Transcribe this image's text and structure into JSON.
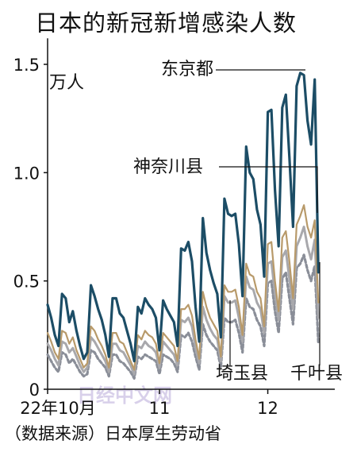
{
  "title": "日本的新冠新增感染人数",
  "source": "（数据来源）日本厚生劳动省",
  "watermark": "日经中文网",
  "colors": {
    "tokyo": "#1c4d66",
    "kanagawa": "#b89a6a",
    "saitama": "#a8a8ac",
    "chiba": "#8a8e98",
    "axis": "#111111",
    "watermark": "#d8d0ea"
  },
  "chart_data": {
    "type": "line",
    "title": "日本的新冠新增感染人数",
    "ylabel": "万人",
    "ylim": [
      0,
      1.62
    ],
    "yticks": [
      0,
      0.5,
      1.0,
      1.5
    ],
    "ytick_labels": [
      "0",
      "0.5",
      "1.0",
      "1.5"
    ],
    "xlim": [
      0,
      74
    ],
    "xticks": [
      {
        "x": 0,
        "label": "22年10月"
      },
      {
        "x": 31,
        "label": "11"
      },
      {
        "x": 61,
        "label": "12"
      }
    ],
    "grid": false,
    "series": [
      {
        "name": "东京都",
        "color_key": "tokyo",
        "style": "solid",
        "width": 3.2,
        "label_pos": [
          0,
          1.47
        ],
        "values": [
          0.39,
          0.33,
          0.25,
          0.2,
          0.44,
          0.42,
          0.31,
          0.36,
          0.27,
          0.2,
          0.14,
          0.17,
          0.48,
          0.43,
          0.37,
          0.32,
          0.25,
          0.15,
          0.42,
          0.42,
          0.35,
          0.33,
          0.27,
          0.21,
          0.13,
          0.38,
          0.35,
          0.42,
          0.39,
          0.37,
          0.33,
          0.18,
          0.41,
          0.37,
          0.34,
          0.31,
          0.2,
          0.65,
          0.64,
          0.68,
          0.59,
          0.38,
          0.22,
          0.79,
          0.63,
          0.55,
          0.49,
          0.44,
          0.24,
          0.88,
          0.81,
          0.8,
          0.81,
          0.67,
          0.43,
          1.12,
          1.0,
          0.97,
          0.83,
          0.76,
          0.52,
          1.28,
          1.29,
          0.92,
          0.66,
          1.3,
          1.36,
          1.07,
          0.75,
          1.4,
          1.46,
          1.45,
          1.24,
          1.13,
          1.43,
          0.54
        ]
      },
      {
        "name": "神奈川县",
        "color_key": "kanagawa",
        "style": "solid",
        "width": 2.2,
        "label_pos": [
          0,
          1.02
        ],
        "values": [
          0.26,
          0.22,
          0.17,
          0.14,
          0.27,
          0.26,
          0.21,
          0.24,
          0.18,
          0.14,
          0.1,
          0.12,
          0.29,
          0.27,
          0.23,
          0.2,
          0.16,
          0.1,
          0.26,
          0.26,
          0.22,
          0.21,
          0.17,
          0.13,
          0.09,
          0.25,
          0.23,
          0.27,
          0.25,
          0.24,
          0.21,
          0.12,
          0.26,
          0.24,
          0.22,
          0.2,
          0.13,
          0.37,
          0.37,
          0.39,
          0.34,
          0.23,
          0.14,
          0.45,
          0.38,
          0.33,
          0.3,
          0.27,
          0.15,
          0.48,
          0.45,
          0.45,
          0.46,
          0.38,
          0.25,
          0.58,
          0.53,
          0.52,
          0.45,
          0.42,
          0.29,
          0.67,
          0.68,
          0.5,
          0.36,
          0.7,
          0.73,
          0.59,
          0.42,
          0.76,
          0.8,
          0.85,
          0.75,
          0.7,
          0.78,
          0.4
        ]
      },
      {
        "name": "埼玉县",
        "color_key": "saitama",
        "style": "solid",
        "width": 3.0,
        "label_pos": [
          0,
          0.4
        ],
        "values": [
          0.21,
          0.18,
          0.14,
          0.11,
          0.22,
          0.21,
          0.17,
          0.19,
          0.15,
          0.11,
          0.08,
          0.1,
          0.24,
          0.22,
          0.19,
          0.16,
          0.13,
          0.08,
          0.21,
          0.21,
          0.18,
          0.17,
          0.14,
          0.11,
          0.07,
          0.2,
          0.19,
          0.22,
          0.2,
          0.19,
          0.17,
          0.1,
          0.22,
          0.2,
          0.18,
          0.16,
          0.11,
          0.32,
          0.31,
          0.33,
          0.29,
          0.19,
          0.12,
          0.38,
          0.32,
          0.28,
          0.25,
          0.23,
          0.13,
          0.43,
          0.4,
          0.4,
          0.41,
          0.33,
          0.22,
          0.52,
          0.47,
          0.46,
          0.4,
          0.37,
          0.26,
          0.58,
          0.59,
          0.44,
          0.32,
          0.61,
          0.64,
          0.51,
          0.37,
          0.66,
          0.7,
          0.75,
          0.66,
          0.6,
          0.69,
          0.33
        ]
      },
      {
        "name": "千叶县",
        "color_key": "chiba",
        "style": "dashed",
        "width": 3.2,
        "label_pos": [
          0,
          0.4
        ],
        "values": [
          0.16,
          0.13,
          0.1,
          0.08,
          0.17,
          0.16,
          0.12,
          0.14,
          0.11,
          0.08,
          0.06,
          0.07,
          0.18,
          0.17,
          0.14,
          0.12,
          0.1,
          0.06,
          0.16,
          0.16,
          0.13,
          0.12,
          0.1,
          0.08,
          0.05,
          0.15,
          0.14,
          0.16,
          0.15,
          0.14,
          0.13,
          0.07,
          0.16,
          0.15,
          0.14,
          0.12,
          0.08,
          0.25,
          0.24,
          0.26,
          0.22,
          0.15,
          0.09,
          0.3,
          0.25,
          0.22,
          0.2,
          0.18,
          0.1,
          0.33,
          0.31,
          0.31,
          0.32,
          0.26,
          0.17,
          0.42,
          0.38,
          0.37,
          0.32,
          0.29,
          0.2,
          0.49,
          0.5,
          0.36,
          0.26,
          0.51,
          0.54,
          0.42,
          0.3,
          0.56,
          0.58,
          0.62,
          0.55,
          0.5,
          0.57,
          0.21
        ]
      }
    ]
  }
}
